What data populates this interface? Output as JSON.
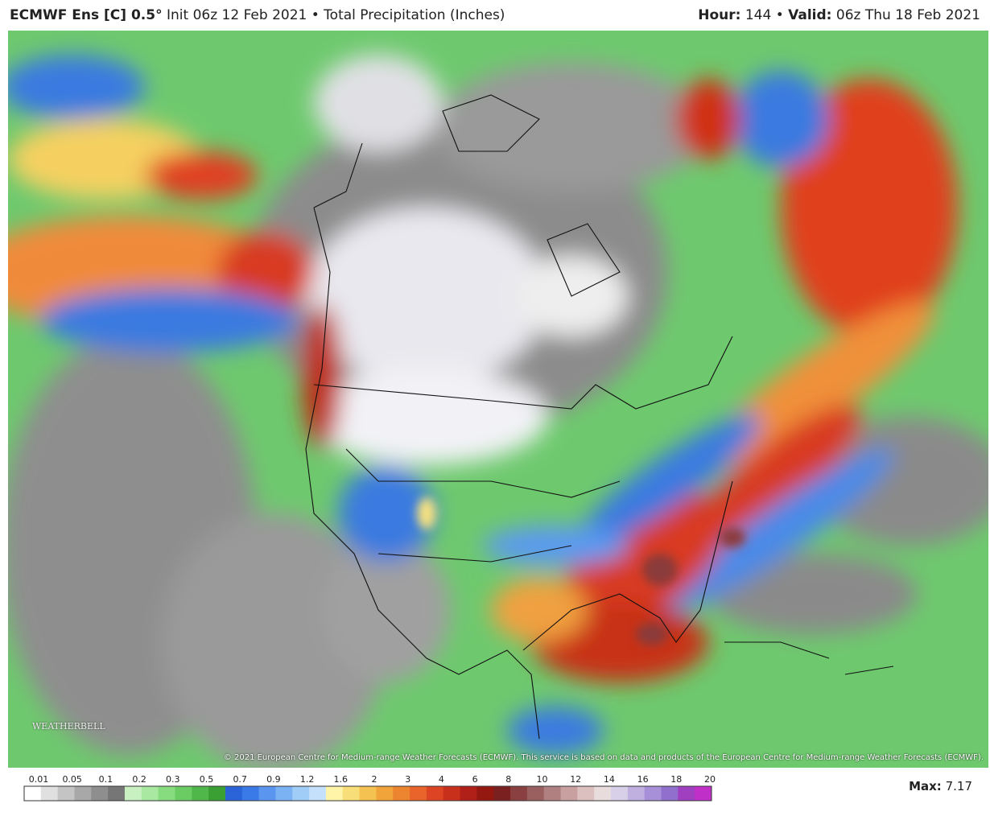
{
  "header": {
    "model": "ECMWF Ens [C] 0.5°",
    "description": "Init 06z 12 Feb 2021 • Total Precipitation (Inches)",
    "hour_label": "Hour:",
    "hour": "144",
    "separator": "•",
    "valid_label": "Valid:",
    "valid": "06z Thu 18 Feb 2021"
  },
  "map": {
    "credit": "© 2021 European Centre for Medium-range Weather Forecasts (ECMWF). This service is based on data and products of the European Centre for Medium-range Weather Forecasts (ECMWF).",
    "logo": "WEATHERBELL"
  },
  "legend": {
    "labels": [
      "0.01",
      "0.05",
      "0.1",
      "0.2",
      "0.3",
      "0.5",
      "0.7",
      "0.9",
      "1.2",
      "1.6",
      "2",
      "3",
      "4",
      "6",
      "8",
      "10",
      "12",
      "14",
      "16",
      "18",
      "20"
    ],
    "max_label": "Max:",
    "max": "7.17"
  }
}
